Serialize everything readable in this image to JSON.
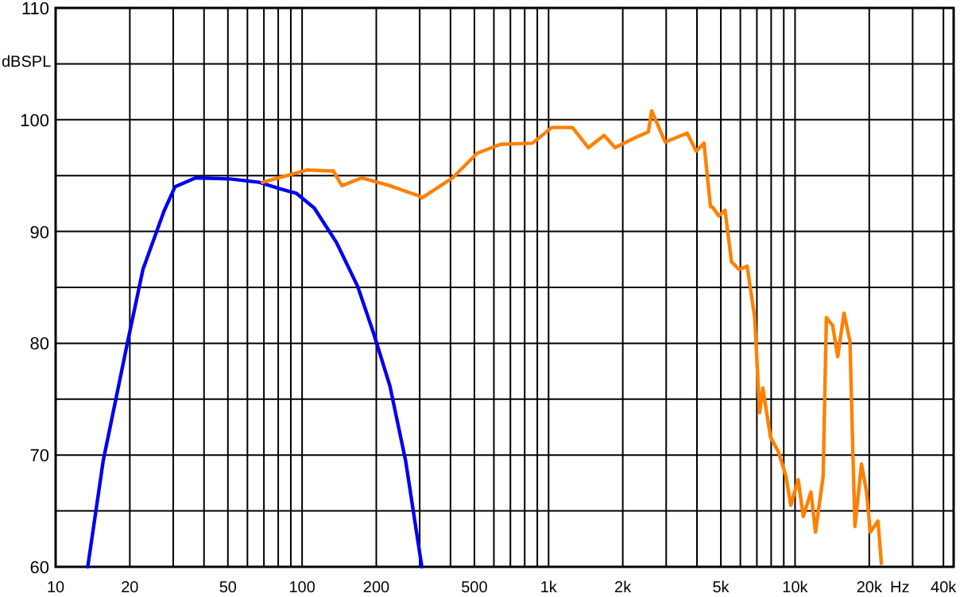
{
  "chart_data": {
    "type": "line",
    "xlabel": "Hz",
    "ylabel": "dBSPL",
    "log": "x",
    "grid": true,
    "line_style": "solid",
    "xlim": [
      10,
      44000
    ],
    "ylim": [
      60,
      110
    ],
    "xticks": [
      10,
      20,
      {
        "value": 30,
        "label": null
      },
      {
        "value": 40,
        "label": null
      },
      50,
      {
        "value": 60,
        "label": null
      },
      {
        "value": 70,
        "label": null
      },
      {
        "value": 80,
        "label": null
      },
      {
        "value": 90,
        "label": null
      },
      100,
      200,
      {
        "value": 300,
        "label": null
      },
      {
        "value": 400,
        "label": null
      },
      500,
      {
        "value": 600,
        "label": null
      },
      {
        "value": 700,
        "label": null
      },
      {
        "value": 800,
        "label": null
      },
      {
        "value": 900,
        "label": null
      },
      {
        "value": 1000,
        "label": "1k"
      },
      {
        "value": 2000,
        "label": "2k"
      },
      {
        "value": 3000,
        "label": null
      },
      {
        "value": 4000,
        "label": null
      },
      {
        "value": 5000,
        "label": "5k"
      },
      {
        "value": 6000,
        "label": null
      },
      {
        "value": 7000,
        "label": null
      },
      {
        "value": 8000,
        "label": null
      },
      {
        "value": 9000,
        "label": null
      },
      {
        "value": 10000,
        "label": "10k"
      },
      {
        "value": 20000,
        "label": "20k"
      },
      {
        "value": 30000,
        "label": null
      },
      {
        "value": 40000,
        "label": "40k"
      }
    ],
    "yticks": [
      60,
      {
        "value": 65,
        "label": null
      },
      70,
      {
        "value": 75,
        "label": null
      },
      80,
      {
        "value": 85,
        "label": null
      },
      90,
      {
        "value": 95,
        "label": null
      },
      100,
      {
        "value": 105,
        "label": null
      },
      110
    ],
    "series": [
      {
        "color": "#0000f0",
        "x": [
          13.5,
          15.6,
          19.5,
          22.6,
          27.5,
          30.5,
          37,
          51,
          67,
          82,
          95,
          112,
          138,
          168,
          195,
          227,
          263,
          306
        ],
        "values": [
          60,
          69.5,
          79.9,
          86.6,
          91.8,
          94,
          94.8,
          94.7,
          94.4,
          93.8,
          93.4,
          92.1,
          89,
          85.1,
          80.9,
          76.2,
          69.5,
          60
        ]
      },
      {
        "color": "#ff8000",
        "x": [
          69,
          80,
          105,
          134,
          145,
          175,
          227,
          255,
          296,
          306,
          383,
          408,
          513,
          640,
          860,
          1030,
          1250,
          1450,
          1680,
          1860,
          2250,
          2540,
          2620,
          2970,
          3650,
          3970,
          4270,
          4540,
          4620,
          4900,
          5200,
          5520,
          5930,
          6390,
          6860,
          7180,
          7400,
          7950,
          8560,
          9190,
          9610,
          10300,
          10800,
          11600,
          12100,
          13000,
          13400,
          14200,
          14900,
          15800,
          16700,
          17200,
          17500,
          18600,
          19500,
          20200,
          21700,
          22400
        ],
        "values": [
          94.4,
          94.8,
          95.5,
          95.4,
          94.1,
          94.8,
          94.1,
          93.7,
          93.2,
          93,
          94.4,
          94.8,
          97,
          97.8,
          97.9,
          99.3,
          99.3,
          97.5,
          98.6,
          97.5,
          98.4,
          98.9,
          100.8,
          98,
          98.8,
          97.2,
          97.9,
          92.2,
          92.2,
          91.4,
          91.9,
          87.3,
          86.6,
          86.9,
          82.3,
          73.8,
          76,
          71.6,
          70.3,
          68.1,
          65.5,
          67.8,
          64.5,
          66.7,
          63.1,
          68.1,
          82.3,
          81.6,
          78.8,
          82.7,
          80.2,
          69.5,
          63.6,
          69.2,
          66.7,
          63.1,
          64.1,
          60.3
        ]
      }
    ]
  }
}
